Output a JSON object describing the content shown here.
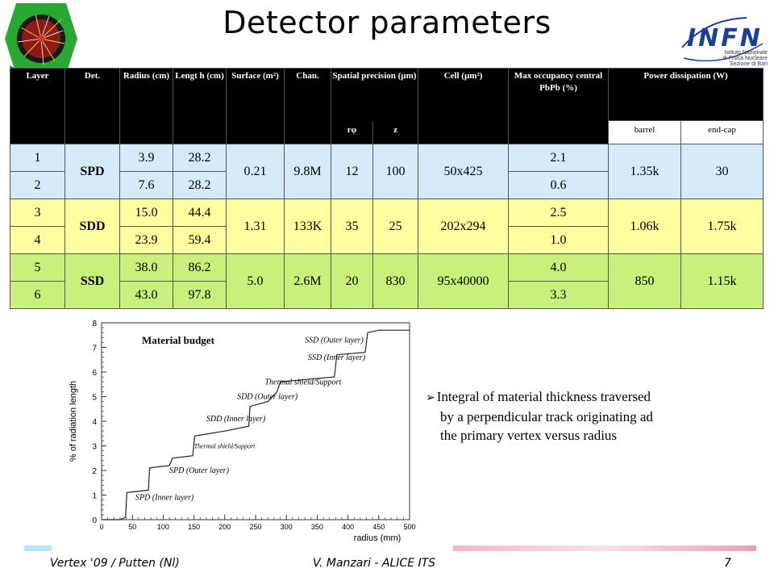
{
  "title": "Detector parameters",
  "logos": {
    "left_icon": "event-display-logo",
    "right_icon": "infn-logo",
    "infn_text": "INFN",
    "infn_sub1": "Istituto Nazionale",
    "infn_sub2": "di Fisica Nucleare",
    "infn_sub3": "Sezione di Bari"
  },
  "table": {
    "headers": {
      "layer": "Layer",
      "det": "Det.",
      "radius": "Radius (cm)",
      "length": "Lengt h (cm)",
      "surface": "Surface (m²)",
      "chan": "Chan.",
      "spatial": "Spatial precision (µm)",
      "spatial_rphi": "rφ",
      "spatial_z": "z",
      "cell": "Cell (µm²)",
      "maxocc": "Max occupancy central PbPb (%)",
      "power": "Power dissipation (W)",
      "power_barrel": "barrel",
      "power_endcap": "end-cap"
    },
    "groups": [
      {
        "det": "SPD",
        "surface": "0.21",
        "chan": "9.8M",
        "rphi": "12",
        "z": "100",
        "cell": "50x425",
        "barrel": "1.35k",
        "endcap": "30",
        "rows": [
          {
            "layer": "1",
            "radius": "3.9",
            "length": "28.2",
            "occ": "2.1"
          },
          {
            "layer": "2",
            "radius": "7.6",
            "length": "28.2",
            "occ": "0.6"
          }
        ]
      },
      {
        "det": "SDD",
        "surface": "1.31",
        "chan": "133K",
        "rphi": "35",
        "z": "25",
        "cell": "202x294",
        "barrel": "1.06k",
        "endcap": "1.75k",
        "rows": [
          {
            "layer": "3",
            "radius": "15.0",
            "length": "44.4",
            "occ": "2.5"
          },
          {
            "layer": "4",
            "radius": "23.9",
            "length": "59.4",
            "occ": "1.0"
          }
        ]
      },
      {
        "det": "SSD",
        "surface": "5.0",
        "chan": "2.6M",
        "rphi": "20",
        "z": "830",
        "cell": "95x40000",
        "barrel": "850",
        "endcap": "1.15k",
        "rows": [
          {
            "layer": "5",
            "radius": "38.0",
            "length": "86.2",
            "occ": "4.0"
          },
          {
            "layer": "6",
            "radius": "43.0",
            "length": "97.8",
            "occ": "3.3"
          }
        ]
      }
    ]
  },
  "plot": {
    "label": "Material budget",
    "ylabel": "% of radiation length",
    "xlabel": "radius (mm)",
    "yticks": [
      "0",
      "1",
      "2",
      "3",
      "4",
      "5",
      "6",
      "7",
      "8"
    ],
    "xticks": [
      "0",
      "50",
      "100",
      "150",
      "200",
      "250",
      "300",
      "350",
      "400",
      "450",
      "500"
    ],
    "annotations": [
      "SSD (Outer layer)",
      "SSD (Inner layer)",
      "Thermal shield/Support",
      "SDD (Outer layer)",
      "SDD (Inner layer)",
      "Thermal shield/Support",
      "SPD (Outer layer)",
      "SPD (Inner layer)"
    ]
  },
  "chart_data": {
    "type": "line",
    "title": "Material budget",
    "xlabel": "radius (mm)",
    "ylabel": "% of radiation length",
    "xlim": [
      0,
      500
    ],
    "ylim": [
      0,
      8
    ],
    "series": [
      {
        "x": [
          0,
          30,
          39,
          41,
          76,
          78,
          110,
          115,
          148,
          151,
          200,
          239,
          241,
          270,
          285,
          290,
          378,
          382,
          428,
          432,
          450,
          500
        ],
        "y": [
          0.0,
          0.0,
          0.1,
          1.1,
          1.2,
          2.1,
          2.2,
          2.5,
          2.6,
          3.4,
          3.6,
          3.8,
          4.6,
          4.8,
          5.2,
          5.6,
          5.8,
          6.7,
          6.8,
          7.6,
          7.7,
          7.7
        ]
      }
    ]
  },
  "bullet": {
    "line1": "Integral of material thickness traversed",
    "line2": "by a perpendicular track originating ad",
    "line3": "the primary vertex versus radius"
  },
  "footer": {
    "left": "Vertex '09 / Putten (Nl)",
    "center": "V. Manzari - ALICE ITS",
    "page": "7"
  }
}
